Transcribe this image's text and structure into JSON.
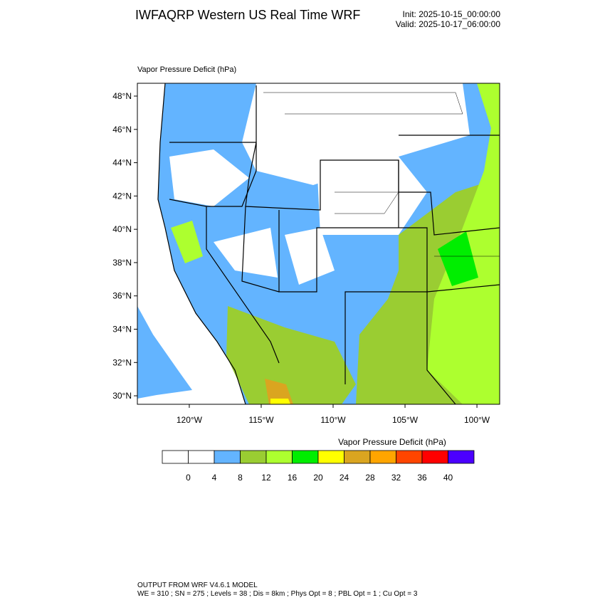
{
  "header": {
    "title": "IWFAQRP Western US Real Time WRF",
    "init": "Init: 2025-10-15_00:00:00",
    "valid": "Valid: 2025-10-17_06:00:00"
  },
  "map": {
    "title": "Vapor Pressure Deficit   (hPa)",
    "lat_range": [
      29.49,
      48.77
    ],
    "lon_range": [
      -123.61,
      -98.42
    ],
    "lat_ticks": [
      {
        "value": 30,
        "label": "30°N"
      },
      {
        "value": 32,
        "label": "32°N"
      },
      {
        "value": 34,
        "label": "34°N"
      },
      {
        "value": 36,
        "label": "36°N"
      },
      {
        "value": 38,
        "label": "38°N"
      },
      {
        "value": 40,
        "label": "40°N"
      },
      {
        "value": 42,
        "label": "42°N"
      },
      {
        "value": 44,
        "label": "44°N"
      },
      {
        "value": 46,
        "label": "46°N"
      },
      {
        "value": 48,
        "label": "48°N"
      }
    ],
    "lon_ticks": [
      {
        "value": -120,
        "label": "120°W"
      },
      {
        "value": -115,
        "label": "115°W"
      },
      {
        "value": -110,
        "label": "110°W"
      },
      {
        "value": -105,
        "label": "105°W"
      },
      {
        "value": -100,
        "label": "100°W"
      }
    ]
  },
  "colorbar": {
    "title": "Vapor Pressure Deficit  (hPa)",
    "colors": [
      "#ffffff",
      "#ffffff",
      "#63b4ff",
      "#9acd32",
      "#adff2f",
      "#00ee00",
      "#ffff00",
      "#daa520",
      "#ffa500",
      "#ff4500",
      "#ff0000",
      "#4b00ff"
    ],
    "ticks": [
      0,
      4,
      8,
      12,
      16,
      20,
      24,
      28,
      32,
      36,
      40
    ]
  },
  "footer": {
    "line1": "OUTPUT FROM WRF V4.6.1 MODEL",
    "line2": "WE = 310 ; SN = 275 ; Levels = 38 ; Dis = 8km ; Phys Opt = 8 ; PBL Opt = 1 ; Cu Opt = 3"
  }
}
